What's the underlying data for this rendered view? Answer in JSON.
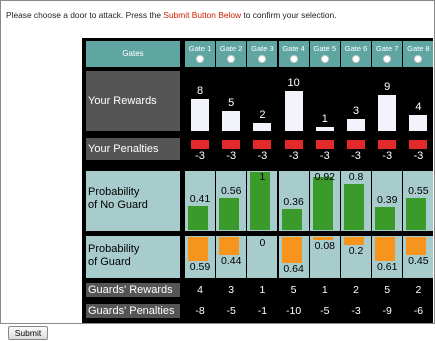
{
  "instructions": {
    "before": "Please choose a door to attack. Press the ",
    "highlight": "Submit Button Below",
    "after": " to confirm your selection."
  },
  "row_labels": {
    "gates": "Gates",
    "rewards": "Your Rewards",
    "penalties": "Your Penalties",
    "prob_no_guard_1": "Probability",
    "prob_no_guard_2": "of No Guard",
    "prob_guard_1": "Probability",
    "prob_guard_2": "of Guard",
    "guards_rewards": "Guards' Rewards",
    "guards_penalties": "Guards' Penalties"
  },
  "gates": [
    {
      "name": "Gate 1",
      "reward": "8",
      "penalty": "-3",
      "no_guard": "0.41",
      "guard": "0.59",
      "guards_reward": "4",
      "guards_penalty": "-8"
    },
    {
      "name": "Gate 2",
      "reward": "5",
      "penalty": "-3",
      "no_guard": "0.56",
      "guard": "0.44",
      "guards_reward": "3",
      "guards_penalty": "-5"
    },
    {
      "name": "Gate 3",
      "reward": "2",
      "penalty": "-3",
      "no_guard": "1",
      "guard": "0",
      "guards_reward": "1",
      "guards_penalty": "-1"
    },
    {
      "name": "Gate 4",
      "reward": "10",
      "penalty": "-3",
      "no_guard": "0.36",
      "guard": "0.64",
      "guards_reward": "5",
      "guards_penalty": "-10"
    },
    {
      "name": "Gate 5",
      "reward": "1",
      "penalty": "-3",
      "no_guard": "0.92",
      "guard": "0.08",
      "guards_reward": "1",
      "guards_penalty": "-5"
    },
    {
      "name": "Gate 6",
      "reward": "3",
      "penalty": "-3",
      "no_guard": "0.8",
      "guard": "0.2",
      "guards_reward": "2",
      "guards_penalty": "-3"
    },
    {
      "name": "Gate 7",
      "reward": "9",
      "penalty": "-3",
      "no_guard": "0.39",
      "guard": "0.61",
      "guards_reward": "5",
      "guards_penalty": "-9"
    },
    {
      "name": "Gate 8",
      "reward": "4",
      "penalty": "-3",
      "no_guard": "0.55",
      "guard": "0.45",
      "guards_reward": "2",
      "guards_penalty": "-6"
    }
  ],
  "submit_label": "Submit",
  "colors": {
    "header_teal": "#5fa6a3",
    "cell_pale": "#a8cccc",
    "no_guard_green": "#3a9b2a",
    "guard_orange": "#f7941d",
    "penalty_red": "#e22a2a",
    "highlight_text": "#cc2200"
  }
}
